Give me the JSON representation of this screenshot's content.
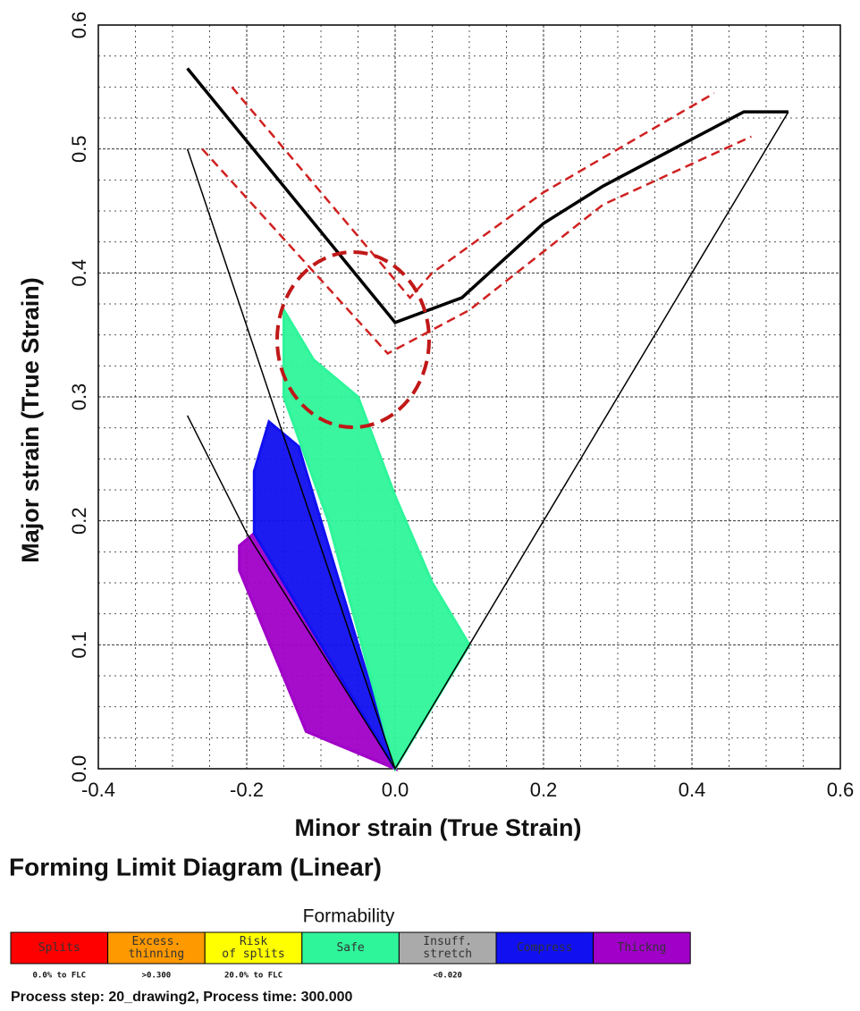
{
  "chart_data": {
    "type": "line",
    "title": "Forming Limit Diagram (Linear)",
    "x_label": "Minor strain (True Strain)",
    "y_label": "Major strain (True Strain)",
    "xlim": [
      -0.4,
      0.6
    ],
    "ylim": [
      0,
      0.6
    ],
    "xticks": [
      -0.4,
      -0.2,
      {
        "value": 0,
        "label": "0.0"
      },
      0.2,
      0.4,
      0.6
    ],
    "yticks": [
      {
        "value": 0,
        "label": "0.0"
      },
      0.1,
      0.2,
      0.3,
      0.4,
      0.5,
      0.6
    ],
    "xminorticks": [
      -0.35,
      -0.3,
      -0.25,
      -0.15,
      -0.1,
      -0.05,
      0.05,
      0.1,
      0.15,
      0.25,
      0.3,
      0.35,
      0.45,
      0.5,
      0.55
    ],
    "yminorticks": [
      0.025,
      0.05,
      0.075,
      0.125,
      0.15,
      0.175,
      0.225,
      0.25,
      0.275,
      0.325,
      0.35,
      0.375,
      0.425,
      0.45,
      0.475,
      0.525,
      0.55,
      0.575
    ],
    "grid": true,
    "series": [
      {
        "style": "region",
        "color": "#a000c8",
        "x": [
          -0.21,
          -0.19,
          -0.1,
          0.0,
          -0.12,
          -0.21
        ],
        "y": [
          0.18,
          0.19,
          0.1,
          0.0,
          0.03,
          0.16
        ]
      },
      {
        "style": "region",
        "color": "#1010f0",
        "x": [
          -0.17,
          -0.13,
          -0.06,
          0.0,
          -0.19,
          -0.19
        ],
        "y": [
          0.28,
          0.26,
          0.12,
          0.0,
          0.19,
          0.24
        ]
      },
      {
        "style": "region",
        "color": "#2ef59a",
        "x": [
          -0.15,
          -0.11,
          -0.05,
          0.0,
          0.05,
          0.1,
          0.0,
          -0.09,
          -0.15
        ],
        "y": [
          0.37,
          0.33,
          0.3,
          0.22,
          0.15,
          0.1,
          0.0,
          0.2,
          0.3
        ]
      },
      {
        "style": "thin",
        "color": "#000000",
        "x": [
          -0.28,
          0.0,
          0.53
        ],
        "y": [
          0.5,
          0.0,
          0.53
        ]
      },
      {
        "style": "thin",
        "color": "#000000",
        "x": [
          -0.28,
          -0.2,
          0.0
        ],
        "y": [
          0.285,
          0.19,
          0.0
        ]
      },
      {
        "style": "dashed",
        "color": "#d02020",
        "x": [
          -0.22,
          0.02,
          0.05,
          0.2,
          0.43
        ],
        "y": [
          0.55,
          0.38,
          0.4,
          0.465,
          0.545
        ]
      },
      {
        "style": "dashed",
        "color": "#d02020",
        "x": [
          -0.26,
          -0.01,
          0.1,
          0.28,
          0.48
        ],
        "y": [
          0.5,
          0.335,
          0.37,
          0.455,
          0.51
        ]
      },
      {
        "style": "thick",
        "color": "#000000",
        "x": [
          -0.28,
          0.0,
          0.09,
          0.2,
          0.28,
          0.47,
          0.53
        ],
        "y": [
          0.565,
          0.36,
          0.38,
          0.44,
          0.47,
          0.53,
          0.53
        ]
      }
    ],
    "legend": {
      "title": "Formability",
      "entries": [
        {
          "lines": [
            "Splits"
          ],
          "color": "#ff0000",
          "note": "0.0% to FLC"
        },
        {
          "lines": [
            "Excess.",
            "thinning"
          ],
          "color": "#ff9900",
          "note": ">0.300"
        },
        {
          "lines": [
            "Risk",
            "of splits"
          ],
          "color": "#ffff00",
          "note": "20.0% to FLC"
        },
        {
          "lines": [
            "Safe"
          ],
          "color": "#2ef59a"
        },
        {
          "lines": [
            "Insuff.",
            "stretch"
          ],
          "color": "#aaaaaa",
          "note": "<0.020"
        },
        {
          "lines": [
            "Compress"
          ],
          "color": "#1010f0"
        },
        {
          "lines": [
            "Thickng"
          ],
          "color": "#a000c8"
        }
      ]
    },
    "footer": "Process step: 20_drawing2, Process time: 300.000"
  }
}
